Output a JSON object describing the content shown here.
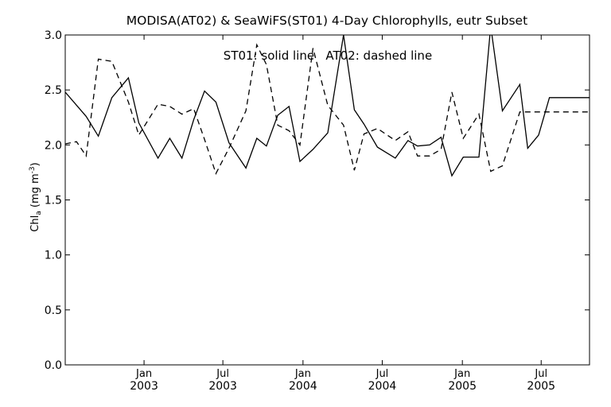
{
  "chart_data": {
    "type": "line",
    "title": "MODISA(AT02) & SeaWiFS(ST01) 4-Day Chlorophylls, eutr Subset",
    "legend_text": "ST01: solid line   AT02: dashed line",
    "ylabel_main": "Chl",
    "ylabel_sub": "a",
    "ylabel_units_pre": " (mg m",
    "ylabel_units_sup": "-3",
    "ylabel_units_post": ")",
    "ylim": [
      0.0,
      3.0
    ],
    "yticks": [
      "0.0",
      "0.5",
      "1.0",
      "1.5",
      "2.0",
      "2.5",
      "3.0"
    ],
    "xticks": [
      {
        "month": "Jan",
        "year": "2003",
        "date": "2003-01-01"
      },
      {
        "month": "Jul",
        "year": "2003",
        "date": "2003-07-01"
      },
      {
        "month": "Jan",
        "year": "2004",
        "date": "2004-01-01"
      },
      {
        "month": "Jul",
        "year": "2004",
        "date": "2004-07-01"
      },
      {
        "month": "Jan",
        "year": "2005",
        "date": "2005-01-01"
      },
      {
        "month": "Jul",
        "year": "2005",
        "date": "2005-07-01"
      }
    ],
    "xlim": [
      "2002-07-04",
      "2005-10-20"
    ],
    "grid": false,
    "series": [
      {
        "name": "ST01",
        "style": "solid",
        "x": [
          "2002-07-04",
          "2002-08-21",
          "2002-09-18",
          "2002-10-19",
          "2002-11-26",
          "2002-12-20",
          "2003-02-02",
          "2003-02-29",
          "2003-03-29",
          "2003-04-25",
          "2003-05-20",
          "2003-06-15",
          "2003-07-15",
          "2003-08-23",
          "2003-09-17",
          "2003-10-09",
          "2003-11-04",
          "2003-11-30",
          "2003-12-25",
          "2004-01-24",
          "2004-02-27",
          "2004-04-03",
          "2004-04-28",
          "2004-05-20",
          "2004-06-20",
          "2004-07-31",
          "2004-08-29",
          "2004-09-20",
          "2004-10-18",
          "2004-11-13",
          "2004-12-08",
          "2005-01-03",
          "2005-02-08",
          "2005-03-07",
          "2005-04-03",
          "2005-05-13",
          "2005-05-31",
          "2005-06-25",
          "2005-07-20",
          "2005-08-25",
          "2005-09-27",
          "2005-10-20"
        ],
        "values": [
          2.48,
          2.26,
          2.08,
          2.43,
          2.61,
          2.2,
          1.88,
          2.06,
          1.88,
          2.23,
          2.49,
          2.39,
          2.02,
          1.79,
          2.06,
          1.99,
          2.27,
          2.35,
          1.85,
          1.96,
          2.11,
          3.0,
          2.32,
          2.19,
          1.98,
          1.88,
          2.04,
          1.99,
          2.0,
          2.07,
          1.72,
          1.89,
          1.89,
          3.08,
          2.31,
          2.55,
          1.97,
          2.09,
          2.43,
          2.43,
          2.43,
          2.43
        ]
      },
      {
        "name": "AT02",
        "style": "dashed",
        "x": [
          "2002-07-04",
          "2002-07-30",
          "2002-08-21",
          "2002-09-18",
          "2002-10-19",
          "2002-11-26",
          "2002-12-20",
          "2003-02-02",
          "2003-02-29",
          "2003-03-29",
          "2003-04-25",
          "2003-05-20",
          "2003-06-15",
          "2003-07-15",
          "2003-08-23",
          "2003-09-17",
          "2003-10-09",
          "2003-11-04",
          "2003-11-30",
          "2003-12-25",
          "2004-01-24",
          "2004-02-27",
          "2004-04-03",
          "2004-04-28",
          "2004-05-20",
          "2004-06-20",
          "2004-07-31",
          "2004-08-29",
          "2004-09-20",
          "2004-10-18",
          "2004-11-13",
          "2004-12-08",
          "2005-01-03",
          "2005-02-08",
          "2005-03-07",
          "2005-04-03",
          "2005-05-13",
          "2005-05-31",
          "2005-06-25",
          "2005-07-20",
          "2005-10-20"
        ],
        "values": [
          2.01,
          2.03,
          1.9,
          2.78,
          2.76,
          2.39,
          2.09,
          2.37,
          2.35,
          2.28,
          2.33,
          2.05,
          1.74,
          1.97,
          2.31,
          2.91,
          2.73,
          2.18,
          2.13,
          2.0,
          2.88,
          2.36,
          2.18,
          1.77,
          2.1,
          2.15,
          2.04,
          2.12,
          1.9,
          1.9,
          1.96,
          2.48,
          2.06,
          2.28,
          1.76,
          1.81,
          2.3,
          2.3,
          2.3,
          2.3,
          2.3
        ]
      }
    ]
  }
}
